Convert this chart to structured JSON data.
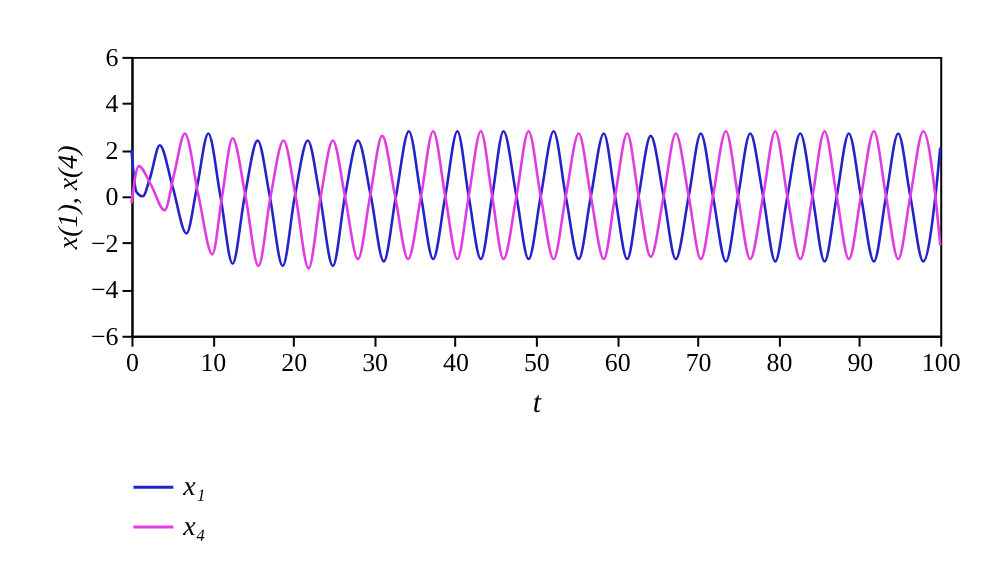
{
  "chart_data": {
    "type": "line",
    "xlabel": "t",
    "ylabel": "x(1), x(4)",
    "xlim": [
      0,
      100
    ],
    "xticks": [
      0,
      10,
      20,
      30,
      40,
      50,
      60,
      70,
      80,
      90,
      100
    ],
    "ylim": [
      -6,
      6
    ],
    "yticks": [
      -6,
      -4,
      -2,
      0,
      2,
      4,
      6
    ],
    "grid": false,
    "legend": "bottom left",
    "marker": "none",
    "line_style": "solid",
    "series": [
      {
        "name": "x₁",
        "color": "#2323c8",
        "x": [
          0,
          0.6,
          1.4,
          2.3,
          3.5,
          5.1,
          6.8,
          8.1,
          9.5,
          11.0,
          12.5,
          14.0,
          15.6,
          17.1,
          18.7,
          20.2,
          21.8,
          23.3,
          24.9,
          26.4,
          28.0,
          29.6,
          31.2,
          32.7,
          34.3,
          35.8,
          37.3,
          38.8,
          40.3,
          41.7,
          43.2,
          44.6,
          46.0,
          47.6,
          49.1,
          50.6,
          52.2,
          53.7,
          55.3,
          56.8,
          58.4,
          59.8,
          61.3,
          62.7,
          64.2,
          65.8,
          67.3,
          68.9,
          70.4,
          71.9,
          73.5,
          75.0,
          76.5,
          78.1,
          79.6,
          81.1,
          82.7,
          84.2,
          85.7,
          87.2,
          88.7,
          90.2,
          91.8,
          93.3,
          94.8,
          96.3,
          97.9,
          99.4,
          100
        ],
        "values": [
          2.0,
          0.2,
          0.0,
          0.8,
          2.2,
          0.4,
          -1.6,
          0.4,
          2.7,
          0,
          -2.9,
          0,
          2.4,
          0,
          -3.0,
          0,
          2.4,
          0,
          -3.0,
          0,
          2.4,
          0,
          -2.8,
          0,
          2.8,
          0,
          -2.7,
          0,
          2.8,
          0,
          -2.7,
          0,
          2.8,
          0,
          -2.7,
          0,
          2.8,
          0,
          -2.7,
          0,
          2.7,
          0,
          -2.7,
          0,
          2.6,
          0,
          -2.7,
          0,
          2.7,
          0,
          -2.8,
          0,
          2.7,
          0,
          -2.8,
          0,
          2.7,
          0,
          -2.8,
          0,
          2.7,
          0,
          -2.8,
          0,
          2.7,
          0,
          -2.8,
          0,
          2.1
        ]
      },
      {
        "name": "x₄",
        "color": "#e03ce0",
        "x": [
          0,
          0.9,
          2.4,
          4.1,
          5.3,
          6.6,
          8.3,
          10.0,
          11.2,
          12.5,
          14.1,
          15.7,
          17.2,
          18.8,
          20.3,
          21.9,
          23.4,
          24.9,
          26.4,
          28.0,
          29.5,
          31.0,
          32.6,
          34.2,
          35.8,
          37.3,
          38.8,
          40.3,
          41.7,
          43.2,
          44.6,
          46.0,
          47.6,
          49.1,
          50.6,
          52.2,
          53.7,
          55.3,
          56.8,
          58.4,
          59.8,
          61.3,
          62.7,
          64.2,
          65.8,
          67.3,
          68.9,
          70.4,
          71.9,
          73.5,
          75.0,
          76.5,
          78.1,
          79.6,
          81.1,
          82.7,
          84.2,
          85.7,
          87.2,
          88.7,
          90.2,
          91.8,
          93.3,
          94.8,
          96.3,
          97.9,
          99.4,
          100
        ],
        "values": [
          -0.3,
          1.3,
          0.5,
          -0.6,
          1.0,
          2.7,
          0,
          -2.5,
          0,
          2.5,
          0,
          -3.0,
          0,
          2.4,
          0,
          -3.1,
          0,
          2.4,
          0,
          -2.7,
          0,
          2.6,
          0,
          -2.7,
          0,
          2.8,
          0,
          -2.7,
          0,
          2.8,
          0,
          -2.7,
          0,
          2.8,
          0,
          -2.7,
          0,
          2.7,
          0,
          -2.7,
          0,
          2.7,
          0,
          -2.6,
          0,
          2.7,
          0,
          -2.7,
          0,
          2.8,
          0,
          -2.7,
          0,
          2.8,
          0,
          -2.7,
          0,
          2.8,
          0,
          -2.7,
          0,
          2.8,
          0,
          -2.7,
          0,
          2.8,
          0,
          -2.1
        ]
      }
    ]
  }
}
